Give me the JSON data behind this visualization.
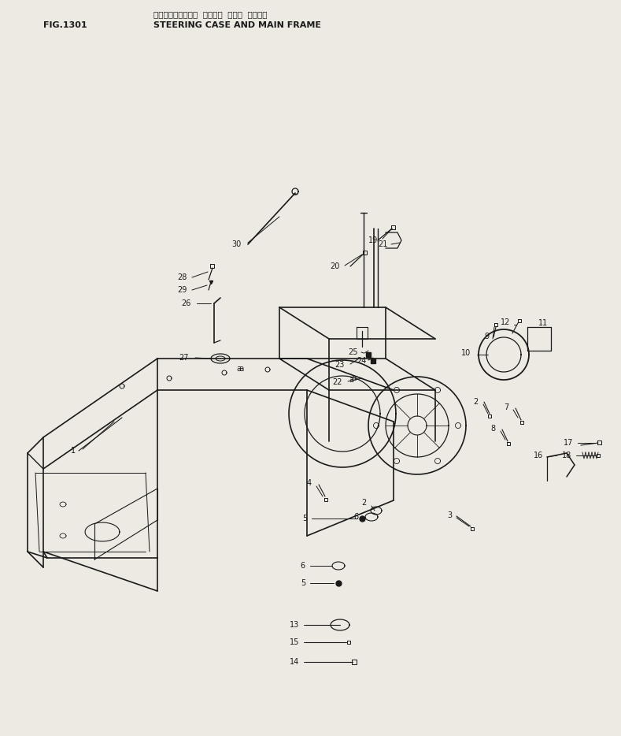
{
  "title_jp": "ステアリングケース  アネビグ  メイン  フレーム",
  "title_en": "STEERING CASE AND MAIN FRAME",
  "fig_id": "FIG.1301",
  "bg_color": "#ede9e3",
  "lc": "#1a1a1a",
  "tc": "#1a1a1a",
  "fig_w": 7.89,
  "fig_h": 9.34,
  "dpi": 100
}
